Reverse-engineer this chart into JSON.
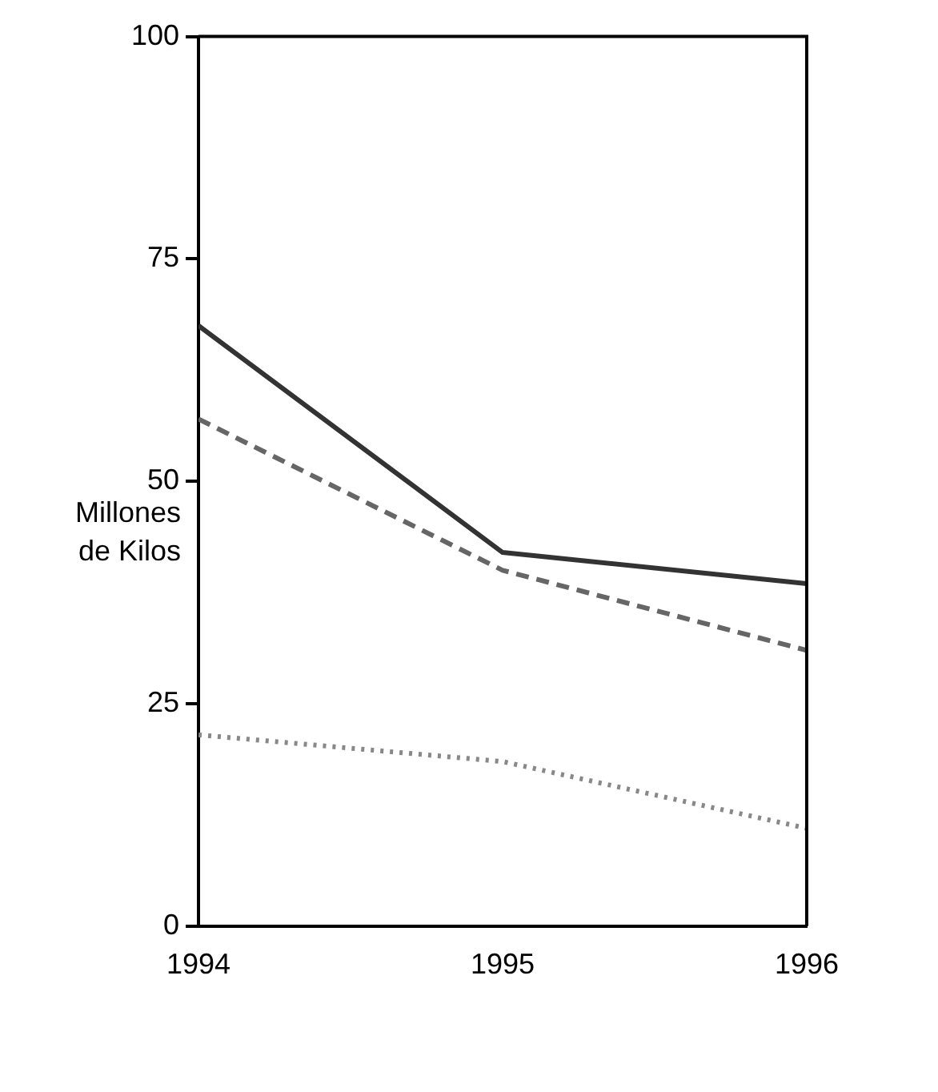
{
  "chart_data": {
    "type": "line",
    "ylabel": "Millones\nde Kilos",
    "x": [
      1994,
      1995,
      1996
    ],
    "series": [
      {
        "color": "#333333",
        "values": [
          67.5,
          42,
          38.5
        ],
        "line_style": "solid"
      },
      {
        "color": "#666666",
        "values": [
          57,
          40,
          31
        ],
        "line_style": "dashed"
      },
      {
        "color": "#888888",
        "values": [
          21.5,
          18.5,
          11
        ],
        "line_style": "dotted"
      }
    ],
    "xlim": [
      1994,
      1996
    ],
    "xticks": [
      1994,
      1995,
      1996
    ],
    "ylim": [
      0,
      100
    ],
    "yticks": [
      0,
      25,
      50,
      75,
      100
    ],
    "grid": false,
    "legend": false,
    "marker": "none"
  }
}
